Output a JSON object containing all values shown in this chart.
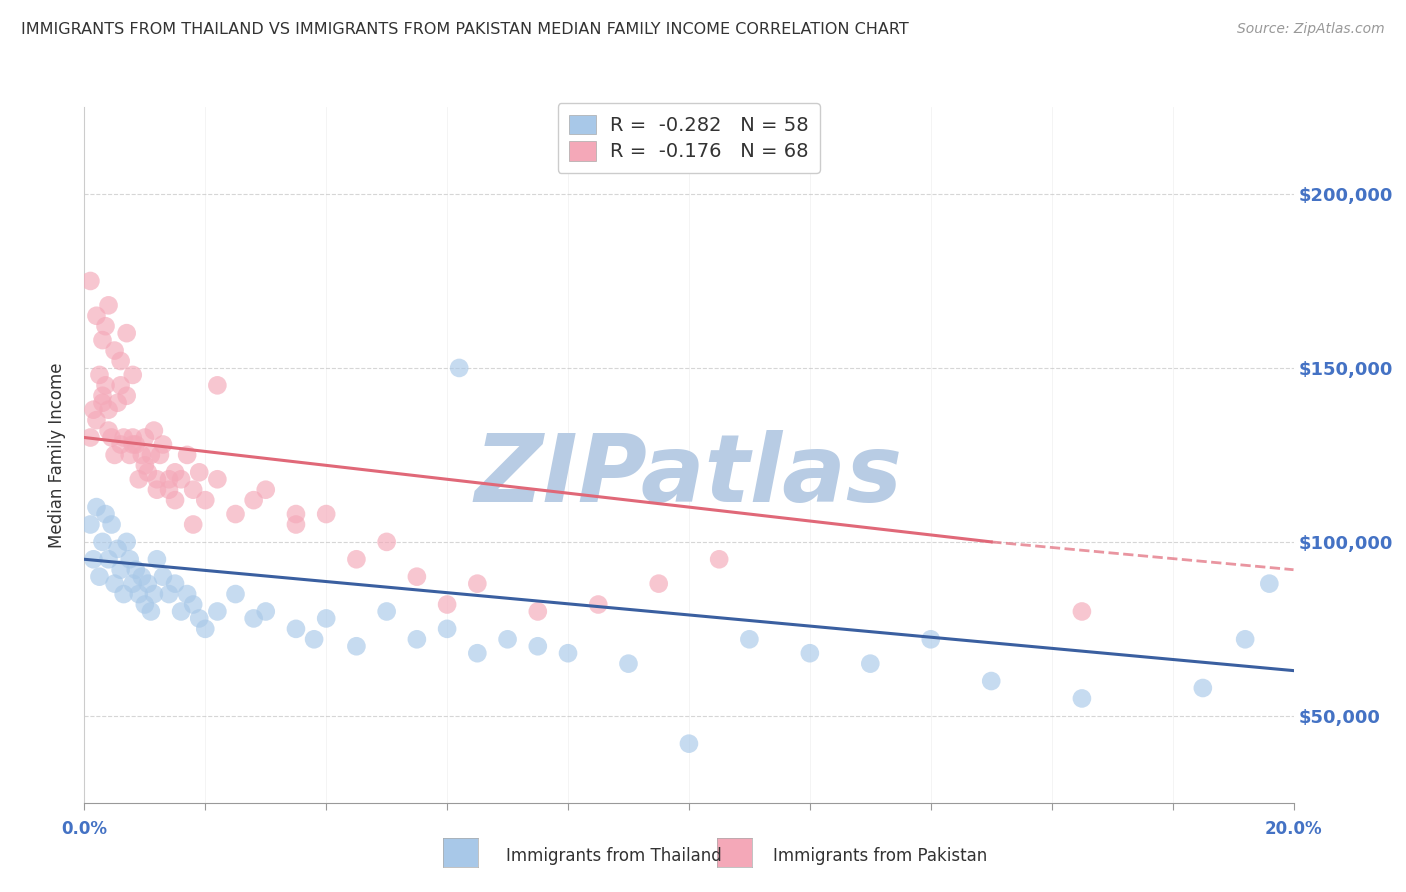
{
  "title": "IMMIGRANTS FROM THAILAND VS IMMIGRANTS FROM PAKISTAN MEDIAN FAMILY INCOME CORRELATION CHART",
  "source": "Source: ZipAtlas.com",
  "ylabel": "Median Family Income",
  "yticks": [
    50000,
    100000,
    150000,
    200000
  ],
  "ytick_labels": [
    "$50,000",
    "$100,000",
    "$150,000",
    "$200,000"
  ],
  "xlim": [
    0.0,
    20.0
  ],
  "ylim": [
    25000,
    225000
  ],
  "legend_r1": "-0.282",
  "legend_n1": "58",
  "legend_r2": "-0.176",
  "legend_n2": "68",
  "color_blue": "#a8c8e8",
  "color_blue_line": "#3a5fa0",
  "color_pink": "#f4a8b8",
  "color_pink_line": "#e06878",
  "watermark": "ZIPatlas",
  "watermark_color": "#b8cce4",
  "thailand_x": [
    0.1,
    0.15,
    0.2,
    0.25,
    0.3,
    0.35,
    0.4,
    0.45,
    0.5,
    0.55,
    0.6,
    0.65,
    0.7,
    0.75,
    0.8,
    0.85,
    0.9,
    0.95,
    1.0,
    1.05,
    1.1,
    1.15,
    1.2,
    1.3,
    1.4,
    1.5,
    1.6,
    1.7,
    1.8,
    1.9,
    2.0,
    2.2,
    2.5,
    2.8,
    3.0,
    3.5,
    3.8,
    4.0,
    4.5,
    5.0,
    5.5,
    6.0,
    6.5,
    7.0,
    7.5,
    8.0,
    9.0,
    10.0,
    11.0,
    12.0,
    13.0,
    14.0,
    15.0,
    16.5,
    18.5,
    19.2,
    19.6,
    6.2
  ],
  "thailand_y": [
    105000,
    95000,
    110000,
    90000,
    100000,
    108000,
    95000,
    105000,
    88000,
    98000,
    92000,
    85000,
    100000,
    95000,
    88000,
    92000,
    85000,
    90000,
    82000,
    88000,
    80000,
    85000,
    95000,
    90000,
    85000,
    88000,
    80000,
    85000,
    82000,
    78000,
    75000,
    80000,
    85000,
    78000,
    80000,
    75000,
    72000,
    78000,
    70000,
    80000,
    72000,
    75000,
    68000,
    72000,
    70000,
    68000,
    65000,
    42000,
    72000,
    68000,
    65000,
    72000,
    60000,
    55000,
    58000,
    72000,
    88000,
    150000
  ],
  "pakistan_x": [
    0.1,
    0.15,
    0.2,
    0.25,
    0.3,
    0.35,
    0.4,
    0.45,
    0.5,
    0.55,
    0.6,
    0.65,
    0.7,
    0.75,
    0.8,
    0.85,
    0.9,
    0.95,
    1.0,
    1.05,
    1.1,
    1.15,
    1.2,
    1.25,
    1.3,
    1.4,
    1.5,
    1.6,
    1.7,
    1.8,
    1.9,
    2.0,
    2.2,
    2.5,
    2.8,
    3.0,
    3.5,
    4.0,
    4.5,
    5.0,
    5.5,
    6.0,
    6.5,
    7.5,
    8.5,
    9.5,
    10.5,
    0.1,
    0.2,
    0.3,
    0.35,
    0.4,
    0.5,
    0.6,
    0.7,
    0.8,
    2.2,
    3.5,
    1.4,
    0.3,
    0.4,
    0.6,
    0.8,
    1.0,
    1.2,
    1.5,
    1.8,
    16.5
  ],
  "pakistan_y": [
    130000,
    138000,
    135000,
    148000,
    140000,
    145000,
    132000,
    130000,
    125000,
    140000,
    128000,
    130000,
    142000,
    125000,
    130000,
    128000,
    118000,
    125000,
    130000,
    120000,
    125000,
    132000,
    118000,
    125000,
    128000,
    115000,
    120000,
    118000,
    125000,
    115000,
    120000,
    112000,
    118000,
    108000,
    112000,
    115000,
    105000,
    108000,
    95000,
    100000,
    90000,
    82000,
    88000,
    80000,
    82000,
    88000,
    95000,
    175000,
    165000,
    158000,
    162000,
    168000,
    155000,
    152000,
    160000,
    148000,
    145000,
    108000,
    118000,
    142000,
    138000,
    145000,
    128000,
    122000,
    115000,
    112000,
    105000,
    80000
  ]
}
